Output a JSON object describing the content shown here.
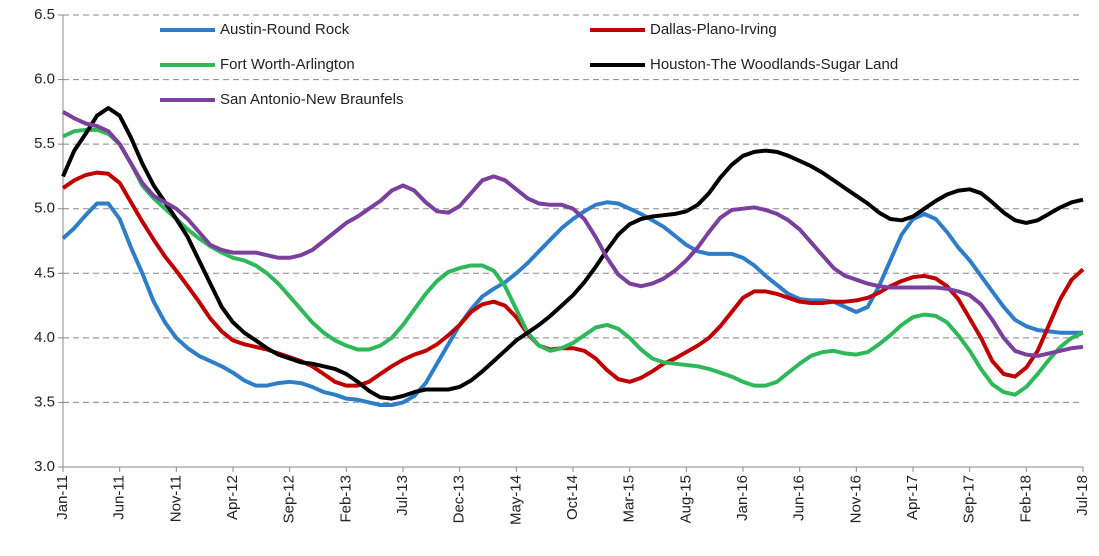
{
  "chart_data": {
    "type": "line",
    "categories": [
      "Jan-11",
      null,
      null,
      null,
      null,
      "Jun-11",
      null,
      null,
      null,
      null,
      "Nov-11",
      null,
      null,
      null,
      null,
      "Apr-12",
      null,
      null,
      null,
      null,
      "Sep-12",
      null,
      null,
      null,
      null,
      "Feb-13",
      null,
      null,
      null,
      null,
      "Jul-13",
      null,
      null,
      null,
      null,
      "Dec-13",
      null,
      null,
      null,
      null,
      "May-14",
      null,
      null,
      null,
      null,
      "Oct-14",
      null,
      null,
      null,
      null,
      "Mar-15",
      null,
      null,
      null,
      null,
      "Aug-15",
      null,
      null,
      null,
      null,
      "Jan-16",
      null,
      null,
      null,
      null,
      "Jun-16",
      null,
      null,
      null,
      null,
      "Nov-16",
      null,
      null,
      null,
      null,
      "Apr-17",
      null,
      null,
      null,
      null,
      "Sep-17",
      null,
      null,
      null,
      null,
      "Feb-18",
      null,
      null,
      null,
      null,
      "Jul-18"
    ],
    "series": [
      {
        "name": "Austin-Round Rock",
        "color": "#2e7dc9",
        "values": [
          4.77,
          4.85,
          4.95,
          5.04,
          5.04,
          4.92,
          4.7,
          4.5,
          4.28,
          4.12,
          4.0,
          3.92,
          3.86,
          3.82,
          3.78,
          3.73,
          3.67,
          3.63,
          3.63,
          3.65,
          3.66,
          3.65,
          3.62,
          3.58,
          3.56,
          3.53,
          3.52,
          3.5,
          3.48,
          3.48,
          3.5,
          3.55,
          3.65,
          3.8,
          3.95,
          4.1,
          4.22,
          4.32,
          4.38,
          4.43,
          4.5,
          4.58,
          4.67,
          4.76,
          4.85,
          4.92,
          4.98,
          5.03,
          5.05,
          5.04,
          5.0,
          4.96,
          4.91,
          4.86,
          4.79,
          4.72,
          4.67,
          4.65,
          4.65,
          4.65,
          4.62,
          4.56,
          4.48,
          4.41,
          4.34,
          4.3,
          4.29,
          4.29,
          4.28,
          4.24,
          4.2,
          4.24,
          4.4,
          4.6,
          4.8,
          4.92,
          4.96,
          4.92,
          4.82,
          4.7,
          4.6,
          4.48,
          4.36,
          4.24,
          4.14,
          4.09,
          4.06,
          4.05,
          4.04,
          4.04,
          4.04
        ]
      },
      {
        "name": "Dallas-Plano-Irving",
        "color": "#c00000",
        "values": [
          5.16,
          5.22,
          5.26,
          5.28,
          5.27,
          5.2,
          5.05,
          4.9,
          4.76,
          4.63,
          4.52,
          4.4,
          4.28,
          4.15,
          4.05,
          3.98,
          3.95,
          3.93,
          3.91,
          3.88,
          3.85,
          3.82,
          3.78,
          3.72,
          3.66,
          3.63,
          3.63,
          3.66,
          3.72,
          3.78,
          3.83,
          3.87,
          3.9,
          3.95,
          4.02,
          4.1,
          4.2,
          4.26,
          4.28,
          4.25,
          4.16,
          4.03,
          3.94,
          3.91,
          3.92,
          3.92,
          3.9,
          3.84,
          3.75,
          3.68,
          3.66,
          3.69,
          3.74,
          3.8,
          3.84,
          3.89,
          3.94,
          4.0,
          4.09,
          4.2,
          4.31,
          4.36,
          4.36,
          4.34,
          4.31,
          4.28,
          4.27,
          4.27,
          4.28,
          4.28,
          4.29,
          4.31,
          4.35,
          4.4,
          4.44,
          4.47,
          4.48,
          4.46,
          4.4,
          4.3,
          4.15,
          4.0,
          3.82,
          3.72,
          3.7,
          3.77,
          3.9,
          4.1,
          4.3,
          4.45,
          4.53
        ]
      },
      {
        "name": "Fort Worth-Arlington",
        "color": "#2fb85a",
        "values": [
          5.56,
          5.6,
          5.61,
          5.61,
          5.58,
          5.5,
          5.35,
          5.18,
          5.08,
          5.0,
          4.92,
          4.84,
          4.77,
          4.71,
          4.66,
          4.62,
          4.6,
          4.56,
          4.5,
          4.42,
          4.32,
          4.22,
          4.12,
          4.04,
          3.98,
          3.94,
          3.91,
          3.91,
          3.94,
          4.0,
          4.1,
          4.22,
          4.34,
          4.44,
          4.51,
          4.54,
          4.56,
          4.56,
          4.52,
          4.4,
          4.22,
          4.04,
          3.94,
          3.9,
          3.92,
          3.96,
          4.02,
          4.08,
          4.1,
          4.07,
          4.0,
          3.91,
          3.84,
          3.81,
          3.8,
          3.79,
          3.78,
          3.76,
          3.73,
          3.7,
          3.66,
          3.63,
          3.63,
          3.66,
          3.73,
          3.8,
          3.86,
          3.89,
          3.9,
          3.88,
          3.87,
          3.89,
          3.95,
          4.02,
          4.1,
          4.16,
          4.18,
          4.17,
          4.12,
          4.02,
          3.9,
          3.76,
          3.64,
          3.58,
          3.56,
          3.62,
          3.72,
          3.83,
          3.93,
          4.0,
          4.04
        ]
      },
      {
        "name": "Houston-The Woodlands-Sugar Land",
        "color": "#000000",
        "values": [
          5.25,
          5.45,
          5.58,
          5.72,
          5.78,
          5.72,
          5.55,
          5.35,
          5.18,
          5.05,
          4.92,
          4.78,
          4.6,
          4.42,
          4.24,
          4.12,
          4.04,
          3.98,
          3.92,
          3.87,
          3.84,
          3.81,
          3.8,
          3.78,
          3.76,
          3.72,
          3.66,
          3.59,
          3.54,
          3.53,
          3.55,
          3.58,
          3.6,
          3.6,
          3.6,
          3.62,
          3.67,
          3.74,
          3.82,
          3.9,
          3.98,
          4.04,
          4.1,
          4.17,
          4.25,
          4.33,
          4.43,
          4.55,
          4.68,
          4.8,
          4.88,
          4.92,
          4.94,
          4.95,
          4.96,
          4.98,
          5.03,
          5.12,
          5.24,
          5.34,
          5.41,
          5.44,
          5.45,
          5.44,
          5.41,
          5.37,
          5.33,
          5.28,
          5.22,
          5.16,
          5.1,
          5.04,
          4.97,
          4.92,
          4.91,
          4.94,
          5.0,
          5.06,
          5.11,
          5.14,
          5.15,
          5.12,
          5.05,
          4.97,
          4.91,
          4.89,
          4.91,
          4.96,
          5.01,
          5.05,
          5.07
        ]
      },
      {
        "name": "San Antonio-New Braunfels",
        "color": "#7b3f9e",
        "values": [
          5.75,
          5.7,
          5.66,
          5.64,
          5.6,
          5.5,
          5.35,
          5.2,
          5.1,
          5.05,
          5.0,
          4.92,
          4.82,
          4.72,
          4.68,
          4.66,
          4.66,
          4.66,
          4.64,
          4.62,
          4.62,
          4.64,
          4.68,
          4.75,
          4.82,
          4.89,
          4.94,
          5.0,
          5.06,
          5.14,
          5.18,
          5.14,
          5.05,
          4.98,
          4.97,
          5.02,
          5.12,
          5.22,
          5.25,
          5.22,
          5.15,
          5.08,
          5.04,
          5.03,
          5.03,
          5.0,
          4.92,
          4.78,
          4.62,
          4.49,
          4.42,
          4.4,
          4.42,
          4.46,
          4.52,
          4.6,
          4.7,
          4.82,
          4.93,
          4.99,
          5.0,
          5.01,
          4.99,
          4.96,
          4.91,
          4.84,
          4.74,
          4.64,
          4.54,
          4.48,
          4.45,
          4.42,
          4.4,
          4.39,
          4.39,
          4.39,
          4.39,
          4.39,
          4.38,
          4.36,
          4.33,
          4.26,
          4.14,
          4.0,
          3.9,
          3.87,
          3.86,
          3.88,
          3.9,
          3.92,
          3.93
        ]
      }
    ],
    "ylim": [
      3,
      6.5
    ],
    "yticks": [
      {
        "value": 3,
        "label": "3.0"
      },
      {
        "value": 3.5,
        "label": "3.5"
      },
      {
        "value": 4,
        "label": "4.0"
      },
      {
        "value": 4.5,
        "label": "4.5"
      },
      {
        "value": 5,
        "label": "5.0"
      },
      {
        "value": 5.5,
        "label": "5.5"
      },
      {
        "value": 6,
        "label": "6.0"
      },
      {
        "value": 6.5,
        "label": "6.5"
      }
    ],
    "grid": true
  }
}
